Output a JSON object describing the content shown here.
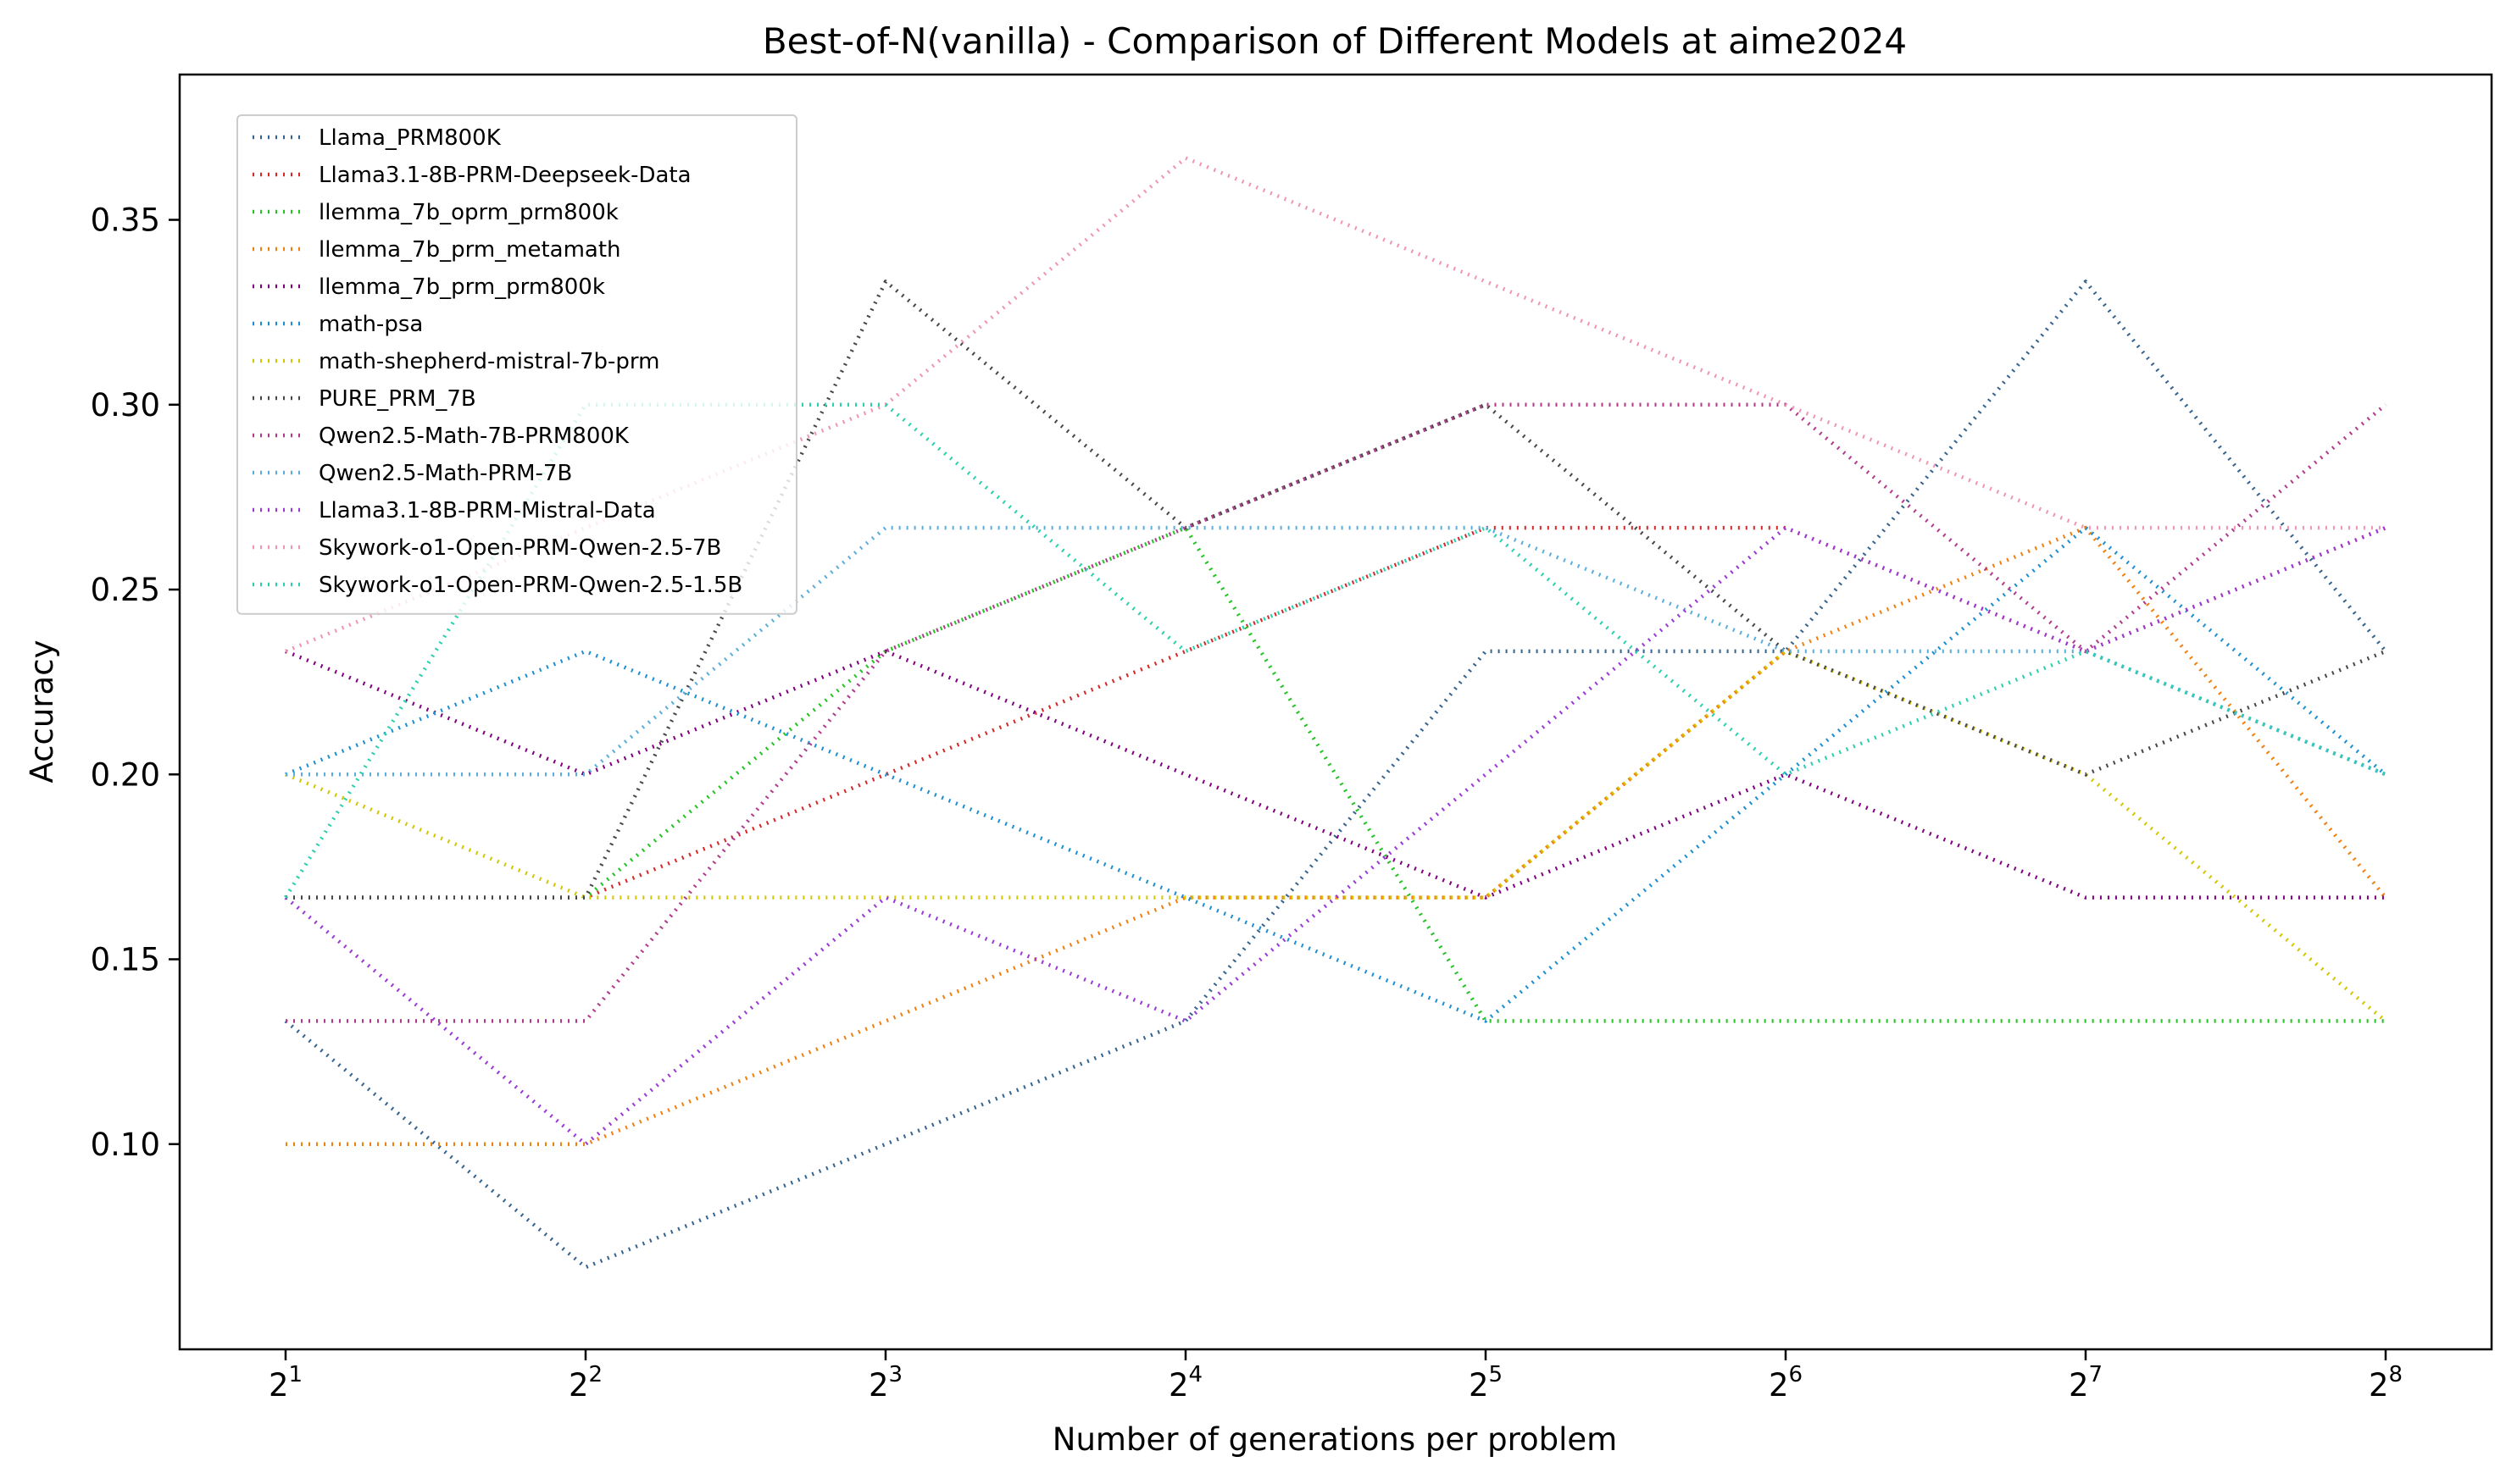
{
  "chart_data": {
    "type": "line",
    "title": "Best-of-N(vanilla) - Comparison of Different Models at aime2024",
    "xlabel": "Number of generations per problem",
    "ylabel": "Accuracy",
    "x_scale": "log2",
    "x": [
      2,
      4,
      8,
      16,
      32,
      64,
      128,
      256
    ],
    "x_tick_labels": [
      {
        "base": "2",
        "exp": "1"
      },
      {
        "base": "2",
        "exp": "2"
      },
      {
        "base": "2",
        "exp": "3"
      },
      {
        "base": "2",
        "exp": "4"
      },
      {
        "base": "2",
        "exp": "5"
      },
      {
        "base": "2",
        "exp": "6"
      },
      {
        "base": "2",
        "exp": "7"
      },
      {
        "base": "2",
        "exp": "8"
      }
    ],
    "y_ticks": [
      "0.10",
      "0.15",
      "0.20",
      "0.25",
      "0.30",
      "0.35"
    ],
    "ylim": [
      0.0445,
      0.3893
    ],
    "grid": false,
    "legend_position": "top-left",
    "line_style": "dotted",
    "series": [
      {
        "name": "Llama_PRM800K",
        "color": "#35638f",
        "values": [
          0.1333,
          0.0667,
          0.1,
          0.1333,
          0.2333,
          0.2333,
          0.3333,
          0.2333
        ]
      },
      {
        "name": "Llama3.1-8B-PRM-Deepseek-Data",
        "color": "#d62728",
        "values": [
          0.1667,
          0.1667,
          0.2,
          0.2333,
          0.2667,
          0.2667,
          0.2333,
          0.2667
        ]
      },
      {
        "name": "llemma_7b_oprm_prm800k",
        "color": "#22c322",
        "values": [
          0.1667,
          0.1667,
          0.2333,
          0.2667,
          0.1333,
          0.1333,
          0.1333,
          0.1333
        ]
      },
      {
        "name": "llemma_7b_prm_metamath",
        "color": "#f07f0e",
        "values": [
          0.1,
          0.1,
          0.1333,
          0.1667,
          0.1667,
          0.2333,
          0.2667,
          0.1667
        ]
      },
      {
        "name": "llemma_7b_prm_prm800k",
        "color": "#800080",
        "values": [
          0.2333,
          0.2,
          0.2333,
          0.2,
          0.1667,
          0.2,
          0.1667,
          0.1667
        ]
      },
      {
        "name": "math-psa",
        "color": "#1b8fd2",
        "values": [
          0.2,
          0.2333,
          0.2,
          0.1667,
          0.1333,
          0.2,
          0.2667,
          0.2
        ]
      },
      {
        "name": "math-shepherd-mistral-7b-prm",
        "color": "#d2c600",
        "values": [
          0.2,
          0.1667,
          0.1667,
          0.1667,
          0.1667,
          0.2333,
          0.2,
          0.1333
        ]
      },
      {
        "name": "PURE_PRM_7B",
        "color": "#474747",
        "values": [
          0.1667,
          0.1667,
          0.3333,
          0.2667,
          0.3,
          0.2333,
          0.2,
          0.2333
        ]
      },
      {
        "name": "Qwen2.5-Math-7B-PRM800K",
        "color": "#b23a8c",
        "values": [
          0.1333,
          0.1333,
          0.2333,
          0.2667,
          0.3,
          0.3,
          0.2333,
          0.3
        ]
      },
      {
        "name": "Qwen2.5-Math-PRM-7B",
        "color": "#5aaedb",
        "values": [
          0.2,
          0.2,
          0.2667,
          0.2667,
          0.2667,
          0.2333,
          0.2333,
          0.2
        ]
      },
      {
        "name": "Llama3.1-8B-PRM-Mistral-Data",
        "color": "#9b38d6",
        "values": [
          0.1667,
          0.1,
          0.1667,
          0.1333,
          0.2,
          0.2667,
          0.2333,
          0.2667
        ]
      },
      {
        "name": "Skywork-o1-Open-PRM-Qwen-2.5-7B",
        "color": "#ef94b4",
        "values": [
          0.2333,
          0.2667,
          0.3,
          0.3667,
          0.3333,
          0.3,
          0.2667,
          0.2667
        ]
      },
      {
        "name": "Skywork-o1-Open-PRM-Qwen-2.5-1.5B",
        "color": "#2ad0ad",
        "values": [
          0.1667,
          0.3,
          0.3,
          0.2333,
          0.2667,
          0.2,
          0.2333,
          0.2
        ]
      }
    ]
  }
}
